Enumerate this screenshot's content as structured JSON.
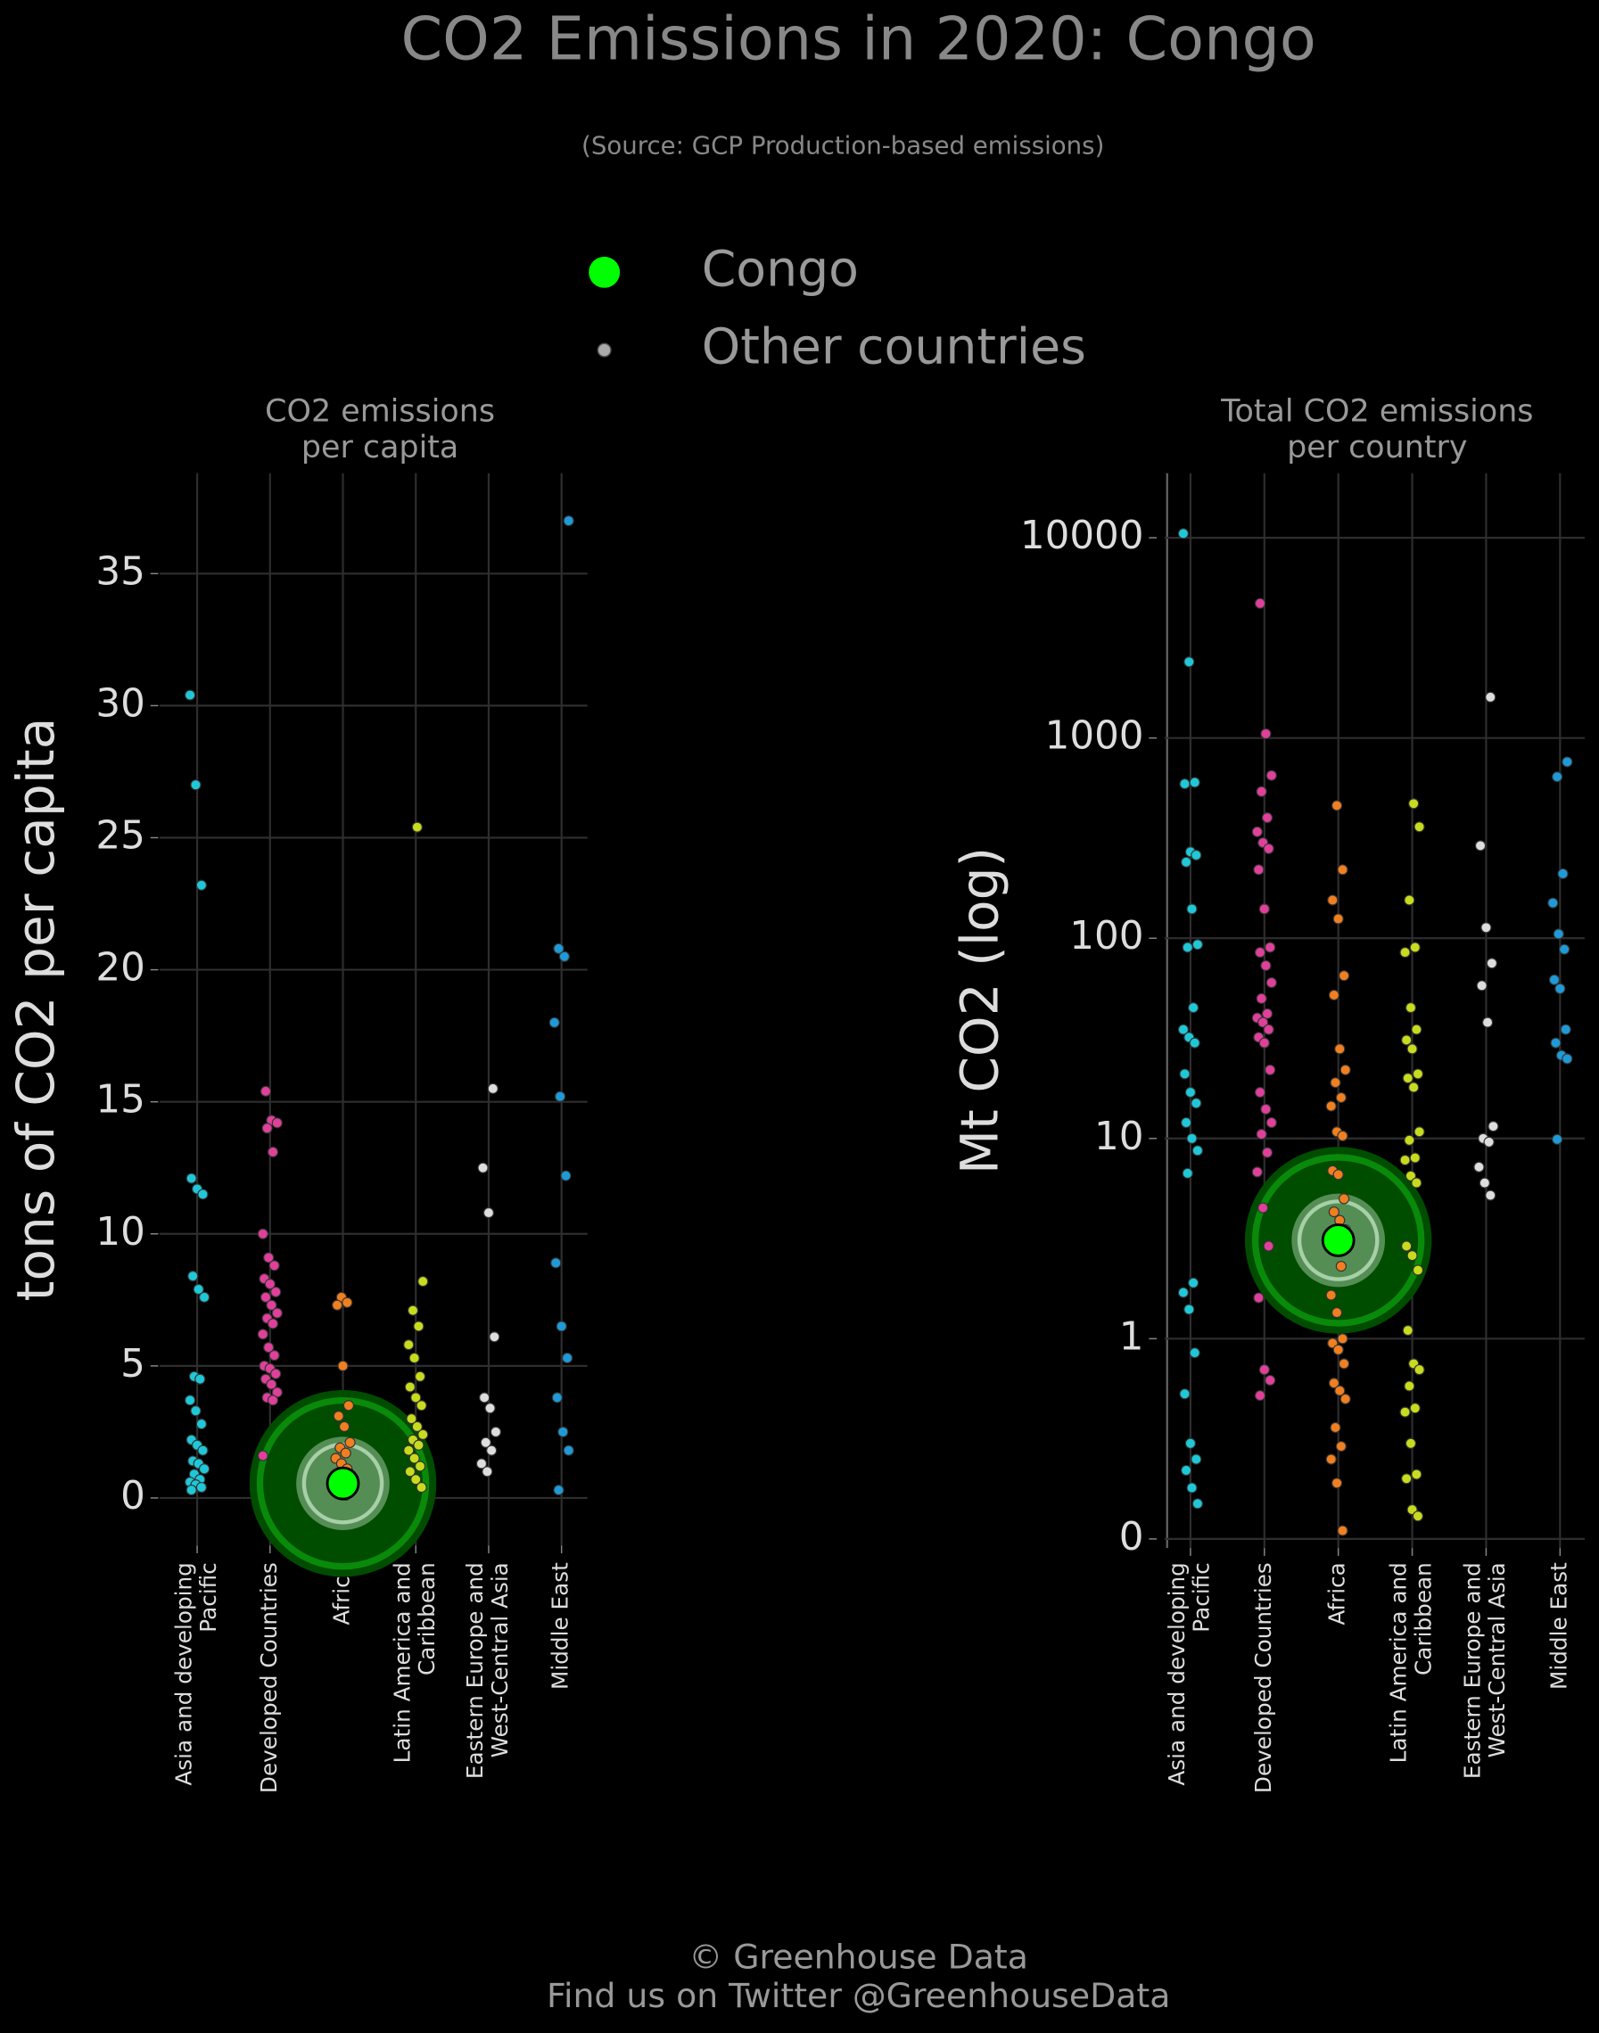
{
  "title": "CO2 Emissions in 2020: Congo",
  "subtitle": "(Source: GCP Production-based emissions)",
  "legend": [
    {
      "name": "Congo",
      "color": "#00ff00"
    },
    {
      "name": "Other countries",
      "color": "#aaaaaa"
    }
  ],
  "footer": [
    "© Greenhouse Data",
    "Find us on Twitter @GreenhouseData"
  ],
  "chart_data": [
    {
      "type": "strip",
      "title": [
        "CO2 emissions",
        "per capita"
      ],
      "ylabel": "tons of CO2 per capita",
      "log": false,
      "grid": true,
      "categories": [
        [
          "Asia and developing",
          "Pacific"
        ],
        [
          "Developed Countries"
        ],
        [
          "Africa"
        ],
        [
          "Latin America and",
          "Caribbean"
        ],
        [
          "Eastern Europe and",
          "West-Central Asia"
        ],
        [
          "Middle East"
        ]
      ],
      "colors": [
        "#1ec8d8",
        "#e0409a",
        "#f07f20",
        "#c8dc1e",
        "#dddddd",
        "#1e9ad8"
      ],
      "values": [
        [
          30.4,
          27,
          23.2,
          12.1,
          11.7,
          11.5,
          8.4,
          7.9,
          7.6,
          4.6,
          4.5,
          3.7,
          3.3,
          2.8,
          2.2,
          2.0,
          1.8,
          1.4,
          1.3,
          1.1,
          0.9,
          0.7,
          0.6,
          0.5,
          0.4,
          0.3
        ],
        [
          15.4,
          14.3,
          14.2,
          14.0,
          13.1,
          10.0,
          9.1,
          8.8,
          8.3,
          8.1,
          7.8,
          7.6,
          7.3,
          7.0,
          6.8,
          6.6,
          6.2,
          5.7,
          5.4,
          5.0,
          4.9,
          4.7,
          4.5,
          4.3,
          4.0,
          3.8,
          3.7,
          1.6
        ],
        [
          7.6,
          7.4,
          7.3,
          5.0,
          3.5,
          3.1,
          2.7,
          2.1,
          1.9,
          1.7,
          1.5,
          1.3,
          1.1,
          0.9,
          0.8,
          0.6,
          0.5,
          0.4,
          0.3,
          0.2,
          0.1
        ],
        [
          25.4,
          8.2,
          7.1,
          6.5,
          5.8,
          5.3,
          4.6,
          4.2,
          3.8,
          3.5,
          3.0,
          2.7,
          2.4,
          2.2,
          2.0,
          1.8,
          1.5,
          1.2,
          1.0,
          0.7,
          0.4
        ],
        [
          15.5,
          12.5,
          10.8,
          6.1,
          3.8,
          3.4,
          2.5,
          2.1,
          1.8,
          1.3,
          1.0
        ],
        [
          37.0,
          20.8,
          20.5,
          18.0,
          15.2,
          12.2,
          8.9,
          6.5,
          5.3,
          3.8,
          2.5,
          1.8,
          0.3
        ]
      ],
      "highlight": {
        "name": "Congo",
        "category": "Africa",
        "value": 0.55
      },
      "ylim": [
        -1.8,
        38.8
      ],
      "yticks": [
        0,
        5,
        10,
        15,
        20,
        25,
        30,
        35
      ]
    },
    {
      "type": "strip",
      "title": [
        "Total CO2 emissions",
        "per country"
      ],
      "ylabel": "Mt CO2 (log)",
      "log": true,
      "grid": true,
      "categories": [
        [
          "Asia and developing",
          "Pacific"
        ],
        [
          "Developed Countries"
        ],
        [
          "Africa"
        ],
        [
          "Latin America and",
          "Caribbean"
        ],
        [
          "Eastern Europe and",
          "West-Central Asia"
        ],
        [
          "Middle East"
        ]
      ],
      "colors": [
        "#1ec8d8",
        "#e0409a",
        "#f07f20",
        "#c8dc1e",
        "#dddddd",
        "#1e9ad8"
      ],
      "values": [
        [
          10500,
          2400,
          600,
          590,
          270,
          260,
          240,
          140,
          93,
          90,
          45,
          35,
          32,
          30,
          21,
          17,
          15,
          12,
          10,
          8.7,
          6.7,
          1.9,
          1.7,
          1.4,
          0.85,
          0.53,
          0.3,
          0.25,
          0.22,
          0.18,
          0.15
        ],
        [
          4700,
          1050,
          650,
          540,
          400,
          340,
          300,
          280,
          220,
          140,
          90,
          85,
          73,
          60,
          50,
          42,
          40,
          38,
          35,
          32,
          30,
          22,
          17,
          14,
          12,
          10.5,
          8.5,
          6.8,
          4.5,
          2.9,
          1.6,
          0.7,
          0.62,
          0.52
        ],
        [
          460,
          220,
          155,
          125,
          65,
          52,
          28,
          22,
          19,
          16,
          14.5,
          10.8,
          10.3,
          6.9,
          6.6,
          5,
          4.3,
          3.9,
          3.5,
          2.8,
          2.3,
          1.65,
          1.35,
          1.0,
          0.95,
          0.88,
          0.75,
          0.6,
          0.55,
          0.5,
          0.36,
          0.29,
          0.25,
          0.19,
          0.11
        ],
        [
          470,
          360,
          155,
          90,
          85,
          45,
          35,
          31,
          28,
          21,
          20,
          18,
          10.8,
          9.8,
          8,
          7.8,
          6.5,
          6,
          2.9,
          2.6,
          2.2,
          1.1,
          0.75,
          0.7,
          0.58,
          0.45,
          0.43,
          0.3,
          0.21,
          0.2,
          0.14,
          0.13
        ],
        [
          1600,
          290,
          113,
          75,
          58,
          38,
          11.5,
          10,
          9.6,
          7.2,
          6,
          5.2
        ],
        [
          760,
          640,
          210,
          150,
          105,
          88,
          62,
          56,
          35,
          30,
          26,
          25,
          9.9
        ]
      ],
      "highlight": {
        "name": "Congo",
        "category": "Africa",
        "value": 3.1
      },
      "ylim": [
        0.09,
        21000
      ],
      "yticks": [
        {
          "value": 0.1,
          "label": "0"
        },
        1,
        10,
        100,
        1000,
        10000
      ]
    }
  ]
}
